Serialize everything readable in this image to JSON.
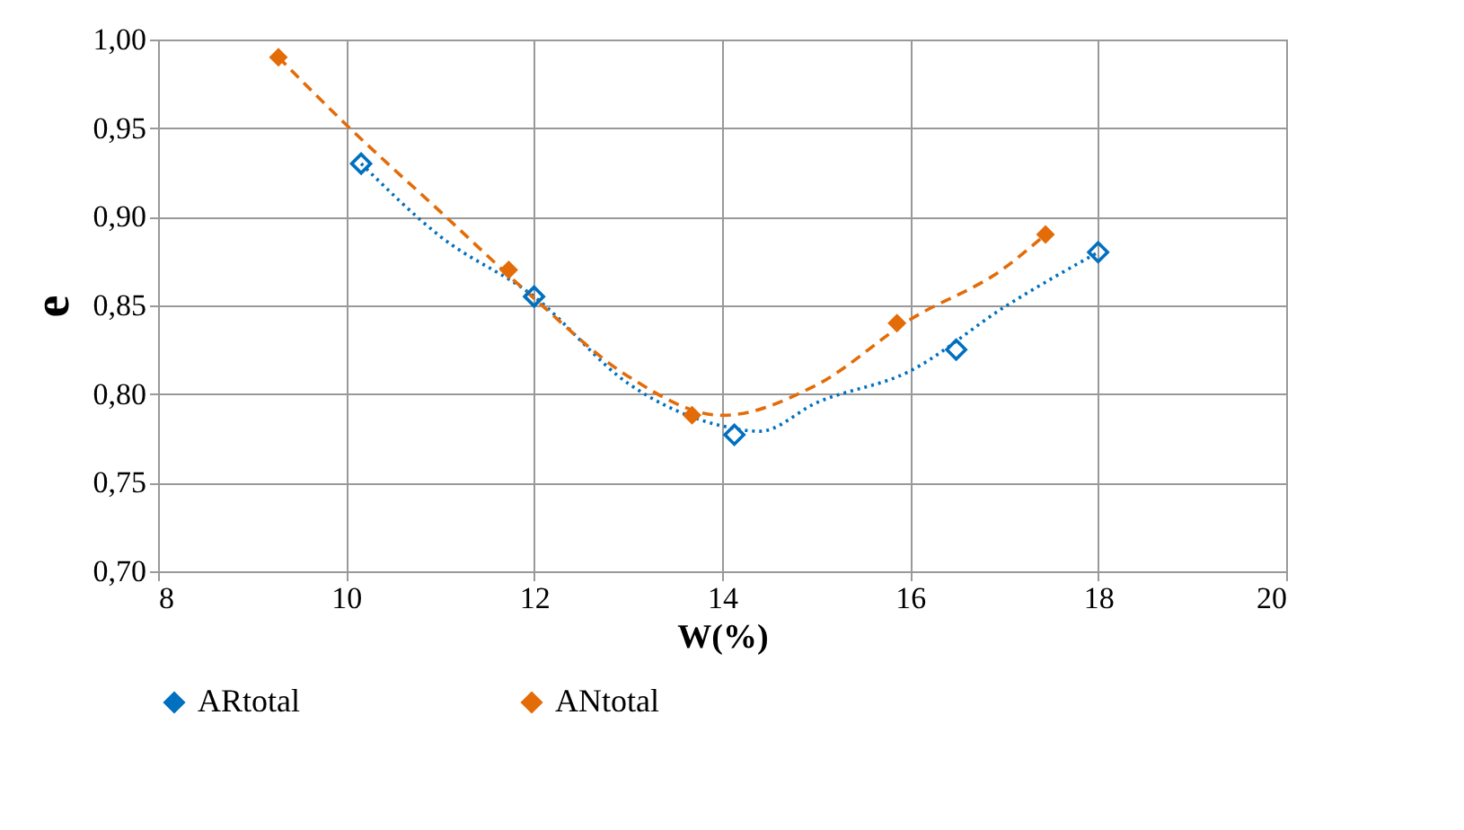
{
  "chart_data": {
    "type": "scatter",
    "xlabel": "W(%)",
    "ylabel": "e",
    "xlim": [
      8,
      20
    ],
    "xticks": [
      8,
      10,
      12,
      14,
      16,
      18,
      20
    ],
    "ylim": [
      0.7,
      1.0
    ],
    "yticks": [
      {
        "value": 0.7,
        "label": "0,70"
      },
      {
        "value": 0.75,
        "label": "0,75"
      },
      {
        "value": 0.8,
        "label": "0,80"
      },
      {
        "value": 0.85,
        "label": "0,85"
      },
      {
        "value": 0.9,
        "label": "0,90"
      },
      {
        "value": 0.95,
        "label": "0,95"
      },
      {
        "value": 1.0,
        "label": "1,00"
      }
    ],
    "grid": true,
    "legend": "bottom",
    "series": [
      {
        "name": "ARtotal",
        "marker": "diamond",
        "color": "#0070c0",
        "x": [
          10.16,
          12.0,
          14.13,
          16.49,
          18.0
        ],
        "values": [
          0.93,
          0.855,
          0.777,
          0.825,
          0.88
        ]
      },
      {
        "name": "ANtotal",
        "marker": "diamond",
        "color": "#e36c09",
        "x": [
          9.28,
          11.73,
          13.68,
          15.86,
          17.44
        ],
        "values": [
          0.99,
          0.87,
          0.788,
          0.84,
          0.89
        ]
      },
      {
        "type": "line",
        "color": "#0070c0",
        "line_style": "dotted",
        "x": [
          10.16,
          11,
          12,
          13,
          14,
          14.4,
          15,
          16,
          17,
          18
        ],
        "values": [
          0.93,
          0.889,
          0.855,
          0.806,
          0.782,
          0.779,
          0.795,
          0.813,
          0.849,
          0.88
        ]
      },
      {
        "type": "line",
        "color": "#e36c09",
        "line_style": "dashed",
        "x": [
          9.28,
          10,
          11,
          12,
          13,
          14,
          15,
          16,
          17,
          17.44
        ],
        "values": [
          0.99,
          0.952,
          0.903,
          0.854,
          0.81,
          0.788,
          0.805,
          0.842,
          0.871,
          0.89
        ]
      }
    ]
  }
}
